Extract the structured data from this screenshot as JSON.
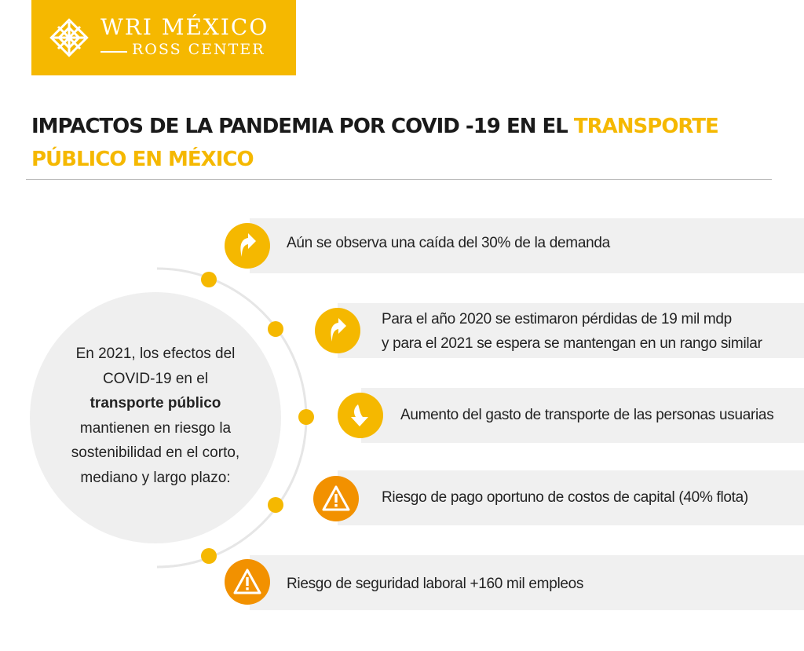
{
  "logo": {
    "line1": "WRI MÉXICO",
    "line2": "ROSS CENTER",
    "mark_icon": "wri-knot-icon"
  },
  "title": {
    "part1": "IMPACTOS DE LA PANDEMIA POR COVID -19 EN EL ",
    "part2": "TRANSPORTE PÚBLICO EN MÉXICO"
  },
  "circle": {
    "line1": "En 2021, los efectos del COVID-19 en el",
    "bold": "transporte público",
    "line2": "mantienen en riesgo la sostenibilidad en el corto, mediano y largo plazo:"
  },
  "items": [
    {
      "icon": "up-turn-arrow-icon",
      "line1": "Aún se observa una caída del 30% de la demanda",
      "line2": ""
    },
    {
      "icon": "up-turn-arrow-icon",
      "line1": "Para el año 2020 se estimaron pérdidas de 19 mil mdp",
      "line2": "y para el 2021 se espera se mantengan en un rango similar"
    },
    {
      "icon": "down-turn-arrow-icon",
      "line1": "Aumento del gasto de transporte de las personas usuarias",
      "line2": ""
    },
    {
      "icon": "warning-triangle-icon",
      "line1": "Riesgo de pago oportuno de costos de capital (40% flota)",
      "line2": ""
    },
    {
      "icon": "warning-triangle-icon",
      "line1": "Riesgo de seguridad laboral +160 mil empleos",
      "line2": ""
    }
  ],
  "colors": {
    "accent_yellow": "#f5b800",
    "accent_orange": "#f29100",
    "band_gray": "#f0f0f0",
    "circle_gray": "#efefef",
    "text_dark": "#1a1a1a"
  }
}
